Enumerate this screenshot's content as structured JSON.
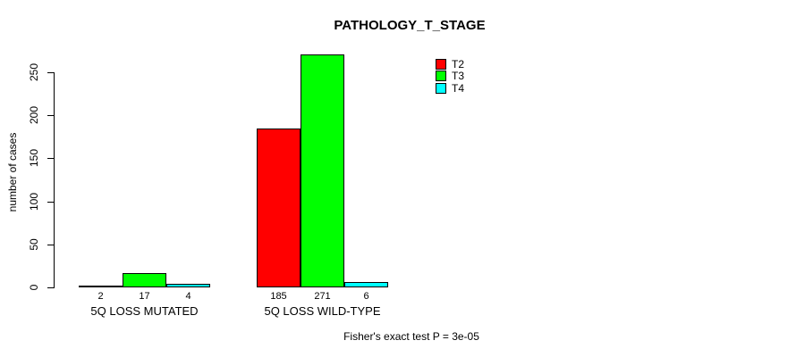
{
  "chart_data": {
    "type": "bar",
    "title": "PATHOLOGY_T_STAGE",
    "ylabel": "number of cases",
    "xlabel": "",
    "categories": [
      "5Q LOSS MUTATED",
      "5Q LOSS WILD-TYPE"
    ],
    "series": [
      {
        "name": "T2",
        "color": "#ff0000",
        "values": [
          2,
          185
        ]
      },
      {
        "name": "T3",
        "color": "#00ff00",
        "values": [
          17,
          271
        ]
      },
      {
        "name": "T4",
        "color": "#00ffff",
        "values": [
          4,
          6
        ]
      }
    ],
    "ylim": [
      0,
      250
    ],
    "yticks": [
      0,
      50,
      100,
      150,
      200,
      250
    ],
    "grid": false,
    "bar_value_labels_shown": true,
    "legend_position": "top-right",
    "legend_entries": [
      "T2",
      "T3",
      "T4"
    ],
    "annotation": "Fisher's exact test P = 3e-05",
    "bar_border_color": "#000000",
    "axis_color": "#000000",
    "background_color": "#ffffff"
  }
}
